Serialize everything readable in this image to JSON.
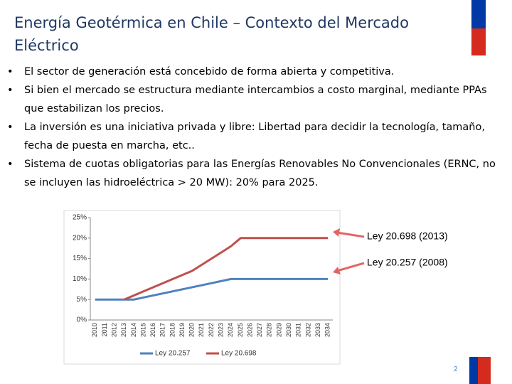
{
  "title": "Energía Geotérmica en Chile – Contexto del Mercado Eléctrico",
  "bullets": [
    "El sector de generación está concebido de forma abierta y competitiva.",
    "Si bien el mercado se estructura mediante intercambios a costo marginal, mediante PPAs que estabilizan los precios.",
    "La inversión es una iniciativa privada y libre: Libertad para decidir la tecnología, tamaño, fecha de puesta en marcha, etc..",
    "Sistema de cuotas obligatorias para las Energías Renovables No Convencionales (ERNC, no se incluyen las hidroeléctrica > 20 MW): 20% para 2025."
  ],
  "chart_data": {
    "type": "line",
    "categories": [
      "2010",
      "2011",
      "2012",
      "2013",
      "2014",
      "2015",
      "2016",
      "2017",
      "2018",
      "2019",
      "2020",
      "2021",
      "2022",
      "2023",
      "2024",
      "2025",
      "2026",
      "2027",
      "2028",
      "2029",
      "2030",
      "2031",
      "2032",
      "2033",
      "2034"
    ],
    "series": [
      {
        "name": "Ley 20.257",
        "color": "#4f81bd",
        "values": [
          5,
          5,
          5,
          5,
          5,
          5.5,
          6,
          6.5,
          7,
          7.5,
          8,
          8.5,
          9,
          9.5,
          10,
          10,
          10,
          10,
          10,
          10,
          10,
          10,
          10,
          10,
          10
        ]
      },
      {
        "name": "Ley 20.698",
        "color": "#c0504d",
        "values": [
          null,
          null,
          null,
          5,
          6,
          7,
          8,
          9,
          10,
          11,
          12,
          13.5,
          15,
          16.5,
          18,
          20,
          20,
          20,
          20,
          20,
          20,
          20,
          20,
          20,
          20
        ]
      }
    ],
    "ylim": [
      0,
      25
    ],
    "yticks": [
      {
        "value": 0,
        "label": "0%"
      },
      {
        "value": 5,
        "label": "5%"
      },
      {
        "value": 10,
        "label": "10%"
      },
      {
        "value": 15,
        "label": "15%"
      },
      {
        "value": 20,
        "label": "20%"
      },
      {
        "value": 25,
        "label": "25%"
      }
    ],
    "grid": false,
    "legend": "bottom",
    "annotations": [
      "Ley 20.698 (2013)",
      "Ley 20.257 (2008)"
    ]
  },
  "page_number": "2"
}
